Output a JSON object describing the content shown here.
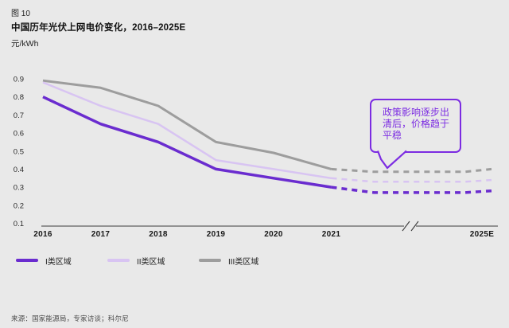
{
  "header": {
    "figure_label": "图 10",
    "title": "中国历年光伏上网电价变化，2016–2025E",
    "unit": "元/kWh"
  },
  "chart_data": {
    "type": "line",
    "title": "中国历年光伏上网电价变化，2016–2025E",
    "ylabel": "元/kWh",
    "ylim": [
      0.1,
      0.9
    ],
    "y_ticks": [
      "0.9",
      "0.8",
      "0.7",
      "0.6",
      "0.5",
      "0.4",
      "0.3",
      "0.2",
      "0.1"
    ],
    "x_labels": [
      "2016",
      "2017",
      "2018",
      "2019",
      "2020",
      "2021",
      "2025E"
    ],
    "axis_break": "between 2021 and 2025E",
    "grid": false,
    "legend_position": "bottom-left",
    "series": [
      {
        "name": "I类区域",
        "color": "#6a2ccf",
        "line_style": "solid 2016-2021, dashed forecast 2021-2025E",
        "historical_years": [
          "2016",
          "2017",
          "2018",
          "2019",
          "2020",
          "2021"
        ],
        "historical_values": [
          0.8,
          0.65,
          0.55,
          0.4,
          0.35,
          0.3
        ],
        "forecast": {
          "start_2021": 0.3,
          "trough": 0.27,
          "end_2025E": 0.28
        }
      },
      {
        "name": "II类区域",
        "color": "#d8c4f2",
        "line_style": "solid 2016-2021, dashed forecast 2021-2025E",
        "historical_years": [
          "2016",
          "2017",
          "2018",
          "2019",
          "2020",
          "2021"
        ],
        "historical_values": [
          0.88,
          0.75,
          0.65,
          0.45,
          0.4,
          0.35
        ],
        "forecast": {
          "start_2021": 0.35,
          "trough": 0.33,
          "end_2025E": 0.34
        }
      },
      {
        "name": "III类区域",
        "color": "#9d9d9d",
        "line_style": "solid 2016-2021, dashed forecast 2021-2025E",
        "historical_years": [
          "2016",
          "2017",
          "2018",
          "2019",
          "2020",
          "2021"
        ],
        "historical_values": [
          0.89,
          0.85,
          0.75,
          0.55,
          0.49,
          0.4
        ],
        "forecast": {
          "start_2021": 0.4,
          "trough": 0.385,
          "end_2025E": 0.4
        }
      }
    ],
    "annotation": {
      "text": "政策影响逐步出清后，价格趋于平稳",
      "lines": [
        "政策影响逐步出",
        "清后，价格趋于",
        "平稳"
      ],
      "color": "#7c2ce2"
    }
  },
  "footer": {
    "source": "来源：国家能源局，专家访谈；科尔尼"
  },
  "colors": {
    "background": "#e9e9e9",
    "text": "#1e1e1e",
    "axis": "#3a3a3a",
    "accent_purple": "#6a2ccf",
    "light_purple": "#d8c4f2",
    "gray": "#9d9d9d",
    "callout_purple": "#7c2ce2",
    "source_text": "#4b4b4b"
  }
}
